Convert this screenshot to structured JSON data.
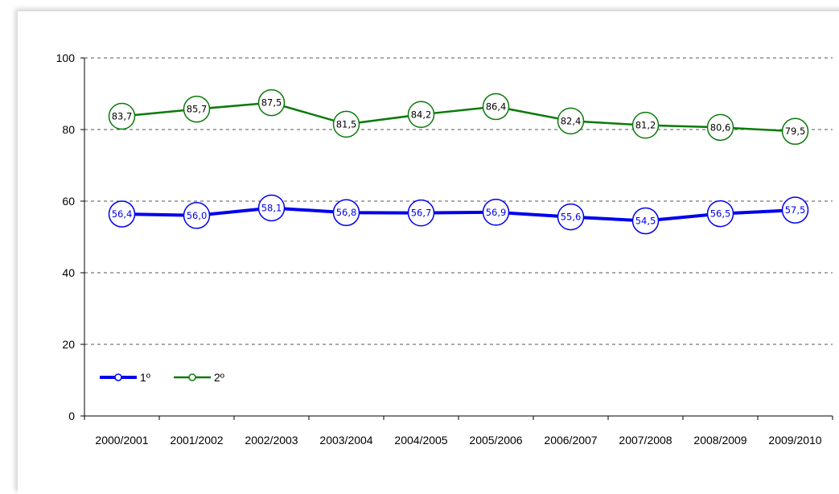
{
  "chart_data": {
    "type": "line",
    "categories": [
      "2000/2001",
      "2001/2002",
      "2002/2003",
      "2003/2004",
      "2004/2005",
      "2005/2006",
      "2006/2007",
      "2007/2008",
      "2008/2009",
      "2009/2010"
    ],
    "ylim": [
      0,
      100
    ],
    "yticks": [
      0,
      20,
      40,
      60,
      80,
      100
    ],
    "grid": true,
    "legend_position": "bottom-left",
    "series": [
      {
        "name": "1º",
        "color": "#0000ee",
        "values": [
          56.4,
          56.0,
          58.1,
          56.8,
          56.7,
          56.9,
          55.6,
          54.5,
          56.5,
          57.5
        ],
        "labels": [
          "56,4",
          "56,0",
          "58,1",
          "56,8",
          "56,7",
          "56,9",
          "55,6",
          "54,5",
          "56,5",
          "57,5"
        ]
      },
      {
        "name": "2º",
        "color": "#0a7a0a",
        "values": [
          83.7,
          85.7,
          87.5,
          81.5,
          84.2,
          86.4,
          82.4,
          81.2,
          80.6,
          79.5
        ],
        "labels": [
          "83,7",
          "85,7",
          "87,5",
          "81,5",
          "84,2",
          "86,4",
          "82,4",
          "81,2",
          "80,6",
          "79,5"
        ]
      }
    ]
  }
}
